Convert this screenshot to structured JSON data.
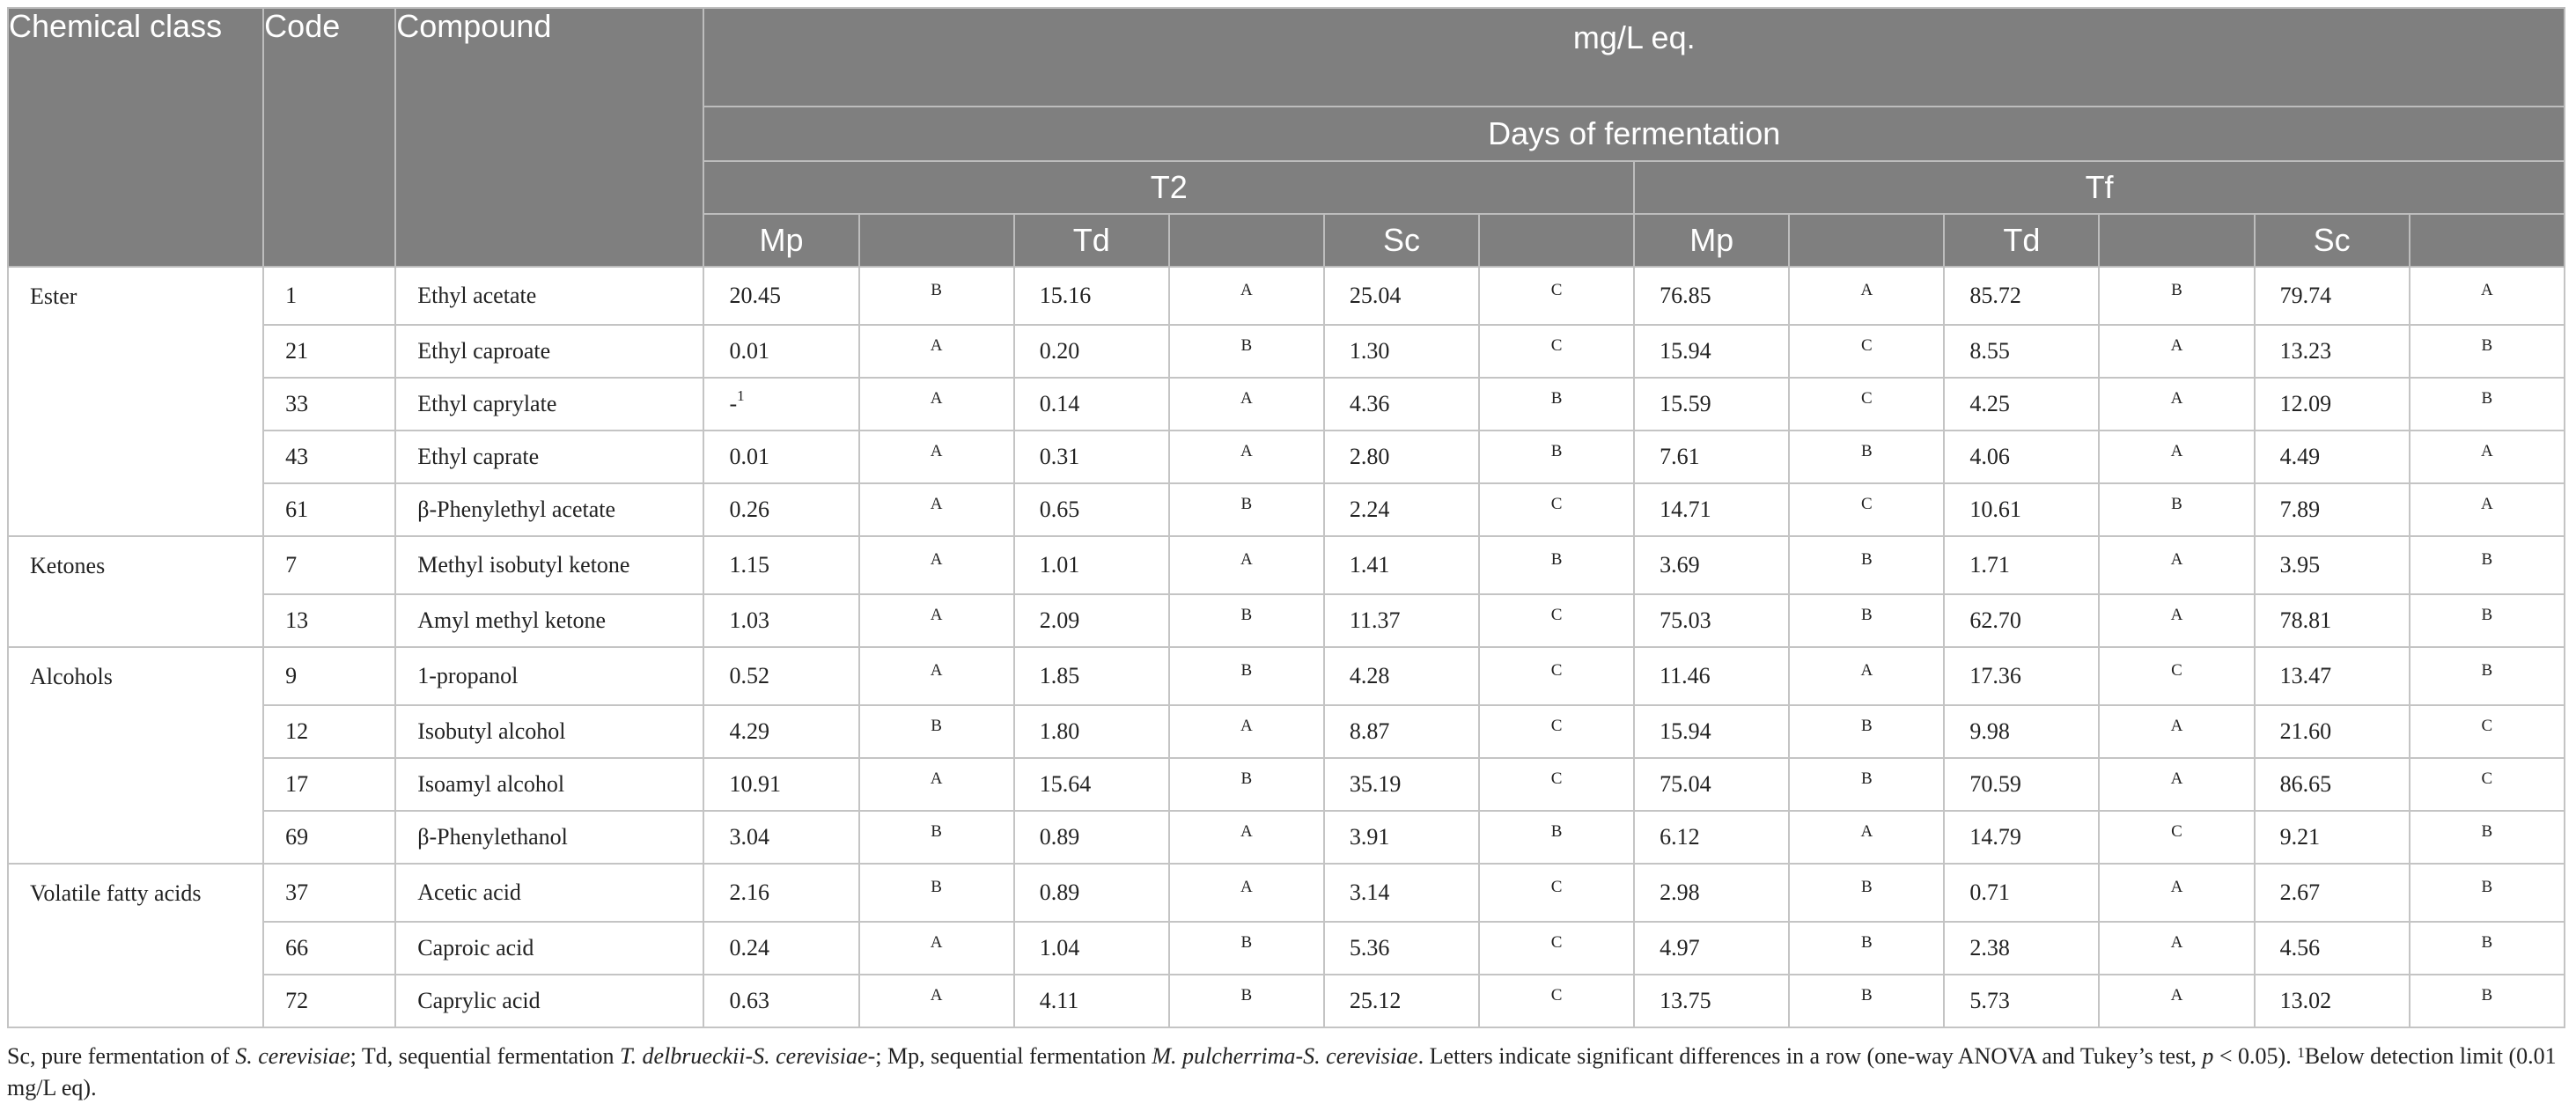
{
  "header": {
    "chemical_class": "Chemical class",
    "code": "Code",
    "compound": "Compound",
    "unit": "mg/L eq.",
    "days": "Days of fermentation",
    "t2": "T2",
    "tf": "Tf",
    "mp": "Mp",
    "td": "Td",
    "sc": "Sc"
  },
  "groups": [
    {
      "class": "Ester",
      "rows": [
        {
          "code": "1",
          "compound": "Ethyl acetate",
          "v": [
            "20.45",
            "B",
            "15.16",
            "A",
            "25.04",
            "C",
            "76.85",
            "A",
            "85.72",
            "B",
            "79.74",
            "A"
          ]
        },
        {
          "code": "21",
          "compound": "Ethyl caproate",
          "v": [
            "0.01",
            "A",
            "0.20",
            "B",
            "1.30",
            "C",
            "15.94",
            "C",
            "8.55",
            "A",
            "13.23",
            "B"
          ]
        },
        {
          "code": "33",
          "compound": "Ethyl caprylate",
          "v": [
            "-",
            "A",
            "0.14",
            "A",
            "4.36",
            "B",
            "15.59",
            "C",
            "4.25",
            "A",
            "12.09",
            "B"
          ],
          "mp_footnote": "1"
        },
        {
          "code": "43",
          "compound": "Ethyl caprate",
          "v": [
            "0.01",
            "A",
            "0.31",
            "A",
            "2.80",
            "B",
            "7.61",
            "B",
            "4.06",
            "A",
            "4.49",
            "A"
          ]
        },
        {
          "code": "61",
          "compound": "β-Phenylethyl acetate",
          "v": [
            "0.26",
            "A",
            "0.65",
            "B",
            "2.24",
            "C",
            "14.71",
            "C",
            "10.61",
            "B",
            "7.89",
            "A"
          ]
        }
      ]
    },
    {
      "class": "Ketones",
      "rows": [
        {
          "code": "7",
          "compound": "Methyl isobutyl ketone",
          "v": [
            "1.15",
            "A",
            "1.01",
            "A",
            "1.41",
            "B",
            "3.69",
            "B",
            "1.71",
            "A",
            "3.95",
            "B"
          ]
        },
        {
          "code": "13",
          "compound": "Amyl methyl ketone",
          "v": [
            "1.03",
            "A",
            "2.09",
            "B",
            "11.37",
            "C",
            "75.03",
            "B",
            "62.70",
            "A",
            "78.81",
            "B"
          ]
        }
      ]
    },
    {
      "class": "Alcohols",
      "rows": [
        {
          "code": "9",
          "compound": "1-propanol",
          "v": [
            "0.52",
            "A",
            "1.85",
            "B",
            "4.28",
            "C",
            "11.46",
            "A",
            "17.36",
            "C",
            "13.47",
            "B"
          ]
        },
        {
          "code": "12",
          "compound": "Isobutyl alcohol",
          "v": [
            "4.29",
            "B",
            "1.80",
            "A",
            "8.87",
            "C",
            "15.94",
            "B",
            "9.98",
            "A",
            "21.60",
            "C"
          ]
        },
        {
          "code": "17",
          "compound": "Isoamyl alcohol",
          "v": [
            "10.91",
            "A",
            "15.64",
            "B",
            "35.19",
            "C",
            "75.04",
            "B",
            "70.59",
            "A",
            "86.65",
            "C"
          ]
        },
        {
          "code": "69",
          "compound": "β-Phenylethanol",
          "v": [
            "3.04",
            "B",
            "0.89",
            "A",
            "3.91",
            "B",
            "6.12",
            "A",
            "14.79",
            "C",
            "9.21",
            "B"
          ]
        }
      ]
    },
    {
      "class": "Volatile fatty acids",
      "rows": [
        {
          "code": "37",
          "compound": "Acetic acid",
          "v": [
            "2.16",
            "B",
            "0.89",
            "A",
            "3.14",
            "C",
            "2.98",
            "B",
            "0.71",
            "A",
            "2.67",
            "B"
          ]
        },
        {
          "code": "66",
          "compound": "Caproic acid",
          "v": [
            "0.24",
            "A",
            "1.04",
            "B",
            "5.36",
            "C",
            "4.97",
            "B",
            "2.38",
            "A",
            "4.56",
            "B"
          ]
        },
        {
          "code": "72",
          "compound": "Caprylic acid",
          "v": [
            "0.63",
            "A",
            "4.11",
            "B",
            "25.12",
            "C",
            "13.75",
            "B",
            "5.73",
            "A",
            "13.02",
            "B"
          ]
        }
      ]
    }
  ],
  "footnote": {
    "p1": "Sc, pure fermentation of ",
    "s1": "S. cerevisiae",
    "p2": "; Td, sequential fermentation ",
    "s2": "T. delbrueckii-S. cerevisiae",
    "p3": "-; Mp, sequential fermentation ",
    "s3": "M. pulcherrima-S. cerevisiae",
    "p4": ". Letters indicate significant differences in a row (one-way ANOVA and Tukey’s test, ",
    "p_var": "p",
    "p5": " < 0.05). ",
    "sup": "1",
    "p6": "Below detection limit (0.01 mg/L eq)."
  }
}
